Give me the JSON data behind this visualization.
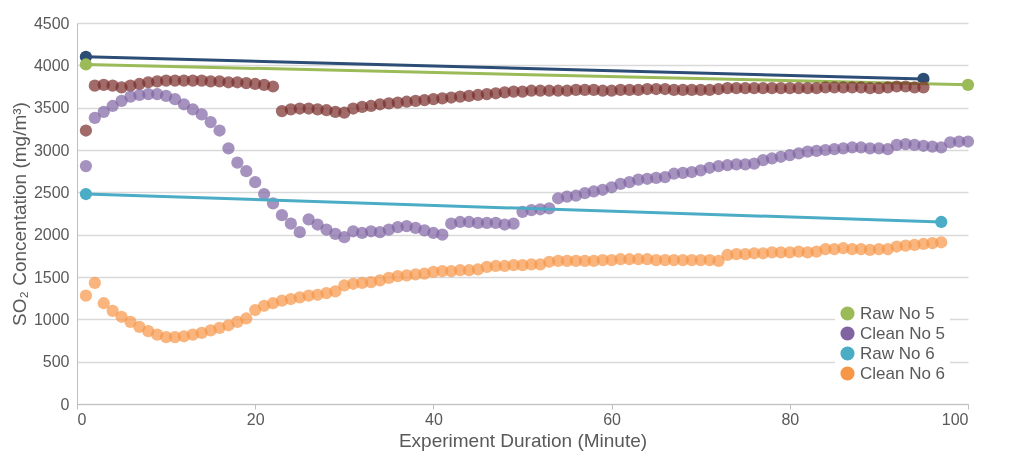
{
  "chart_data": {
    "type": "line",
    "xlabel": "Experiment Duration (Minute)",
    "ylabel": "SO₂ Concentation (mg/m³)",
    "xlim": [
      0,
      100
    ],
    "xticks": [
      0,
      20,
      40,
      60,
      80,
      100
    ],
    "ylim": [
      0,
      4500
    ],
    "yticks": [
      0,
      500,
      1000,
      1500,
      2000,
      2500,
      3000,
      3500,
      4000,
      4500
    ],
    "grid": "y",
    "legend": "bottom right",
    "marker": "circle",
    "line_style": "solid",
    "series": [
      {
        "color": "#2c4d75",
        "x": [
          1,
          95
        ],
        "values": [
          4100,
          3840
        ]
      },
      {
        "name": "Raw No 5",
        "color": "#9bbb59",
        "x": [
          1,
          100
        ],
        "values": [
          4010,
          3770
        ]
      },
      {
        "type": "scatter",
        "color": "#772c2a",
        "x": [
          1,
          2,
          3,
          4,
          5,
          6,
          7,
          8,
          9,
          10,
          11,
          12,
          13,
          14,
          15,
          16,
          17,
          18,
          19,
          20,
          21,
          22,
          23,
          24,
          25,
          26,
          27,
          28,
          29,
          30,
          31,
          32,
          33,
          34,
          35,
          36,
          37,
          38,
          39,
          40,
          41,
          42,
          43,
          44,
          45,
          46,
          47,
          48,
          49,
          50,
          51,
          52,
          53,
          54,
          55,
          56,
          57,
          58,
          59,
          60,
          61,
          62,
          63,
          64,
          65,
          66,
          67,
          68,
          69,
          70,
          71,
          72,
          73,
          74,
          75,
          76,
          77,
          78,
          79,
          80,
          81,
          82,
          83,
          84,
          85,
          86,
          87,
          88,
          89,
          90,
          91,
          92,
          93,
          94,
          95
        ],
        "values": [
          3230,
          3760,
          3770,
          3760,
          3740,
          3760,
          3780,
          3800,
          3810,
          3820,
          3820,
          3820,
          3820,
          3820,
          3810,
          3810,
          3800,
          3800,
          3790,
          3780,
          3770,
          3750,
          3460,
          3480,
          3490,
          3490,
          3480,
          3470,
          3450,
          3440,
          3490,
          3510,
          3520,
          3540,
          3550,
          3560,
          3570,
          3580,
          3590,
          3600,
          3610,
          3620,
          3630,
          3640,
          3650,
          3660,
          3670,
          3680,
          3690,
          3690,
          3700,
          3700,
          3700,
          3700,
          3700,
          3710,
          3710,
          3710,
          3700,
          3700,
          3710,
          3710,
          3710,
          3720,
          3720,
          3720,
          3710,
          3710,
          3710,
          3710,
          3710,
          3720,
          3730,
          3730,
          3730,
          3730,
          3730,
          3730,
          3730,
          3730,
          3730,
          3730,
          3730,
          3740,
          3740,
          3740,
          3740,
          3740,
          3730,
          3730,
          3740,
          3750,
          3750,
          3740,
          3740
        ]
      },
      {
        "type": "scatter",
        "name": "Clean No 5",
        "color": "#8064a2",
        "x": [
          1,
          2,
          3,
          4,
          5,
          6,
          7,
          8,
          9,
          10,
          11,
          12,
          13,
          14,
          15,
          16,
          17,
          18,
          19,
          20,
          21,
          22,
          23,
          24,
          25,
          26,
          27,
          28,
          29,
          30,
          31,
          32,
          33,
          34,
          35,
          36,
          37,
          38,
          39,
          40,
          41,
          42,
          43,
          44,
          45,
          46,
          47,
          48,
          49,
          50,
          51,
          52,
          53,
          54,
          55,
          56,
          57,
          58,
          59,
          60,
          61,
          62,
          63,
          64,
          65,
          66,
          67,
          68,
          69,
          70,
          71,
          72,
          73,
          74,
          75,
          76,
          77,
          78,
          79,
          80,
          81,
          82,
          83,
          84,
          85,
          86,
          87,
          88,
          89,
          90,
          91,
          92,
          93,
          94,
          95,
          96,
          97,
          98,
          99,
          100
        ],
        "values": [
          2810,
          3380,
          3450,
          3520,
          3580,
          3630,
          3650,
          3660,
          3660,
          3640,
          3600,
          3540,
          3480,
          3420,
          3330,
          3230,
          3020,
          2850,
          2750,
          2620,
          2480,
          2370,
          2230,
          2130,
          2030,
          2180,
          2120,
          2060,
          2010,
          1970,
          2040,
          2020,
          2040,
          2030,
          2060,
          2090,
          2100,
          2080,
          2050,
          2020,
          2000,
          2130,
          2150,
          2150,
          2140,
          2140,
          2140,
          2120,
          2130,
          2270,
          2290,
          2300,
          2310,
          2430,
          2450,
          2460,
          2490,
          2510,
          2530,
          2560,
          2600,
          2620,
          2650,
          2660,
          2670,
          2680,
          2720,
          2730,
          2740,
          2760,
          2790,
          2810,
          2820,
          2830,
          2830,
          2840,
          2880,
          2900,
          2920,
          2940,
          2960,
          2980,
          2990,
          3000,
          3010,
          3020,
          3030,
          3030,
          3020,
          3020,
          3010,
          3060,
          3070,
          3060,
          3050,
          3040,
          3030,
          3090,
          3100,
          3100
        ]
      },
      {
        "name": "Raw No 6",
        "color": "#4bacc6",
        "x": [
          1,
          97
        ],
        "values": [
          2480,
          2150
        ]
      },
      {
        "type": "scatter",
        "name": "Clean No 6",
        "color": "#f79646",
        "x": [
          1,
          2,
          3,
          4,
          5,
          6,
          7,
          8,
          9,
          10,
          11,
          12,
          13,
          14,
          15,
          16,
          17,
          18,
          19,
          20,
          21,
          22,
          23,
          24,
          25,
          26,
          27,
          28,
          29,
          30,
          31,
          32,
          33,
          34,
          35,
          36,
          37,
          38,
          39,
          40,
          41,
          42,
          43,
          44,
          45,
          46,
          47,
          48,
          49,
          50,
          51,
          52,
          53,
          54,
          55,
          56,
          57,
          58,
          59,
          60,
          61,
          62,
          63,
          64,
          65,
          66,
          67,
          68,
          69,
          70,
          71,
          72,
          73,
          74,
          75,
          76,
          77,
          78,
          79,
          80,
          81,
          82,
          83,
          84,
          85,
          86,
          87,
          88,
          89,
          90,
          91,
          92,
          93,
          94,
          95,
          96,
          97
        ],
        "values": [
          1280,
          1430,
          1190,
          1100,
          1030,
          970,
          910,
          860,
          820,
          790,
          790,
          800,
          820,
          840,
          870,
          900,
          930,
          970,
          1010,
          1110,
          1160,
          1190,
          1220,
          1240,
          1260,
          1280,
          1290,
          1310,
          1330,
          1400,
          1420,
          1430,
          1440,
          1460,
          1490,
          1510,
          1520,
          1530,
          1540,
          1560,
          1570,
          1570,
          1580,
          1580,
          1590,
          1620,
          1630,
          1630,
          1640,
          1640,
          1650,
          1650,
          1680,
          1690,
          1690,
          1690,
          1690,
          1690,
          1700,
          1700,
          1710,
          1710,
          1710,
          1710,
          1700,
          1700,
          1700,
          1700,
          1700,
          1700,
          1700,
          1690,
          1760,
          1770,
          1770,
          1780,
          1780,
          1790,
          1790,
          1790,
          1800,
          1790,
          1800,
          1830,
          1830,
          1840,
          1830,
          1830,
          1820,
          1830,
          1830,
          1860,
          1870,
          1880,
          1890,
          1900,
          1910
        ]
      }
    ]
  }
}
